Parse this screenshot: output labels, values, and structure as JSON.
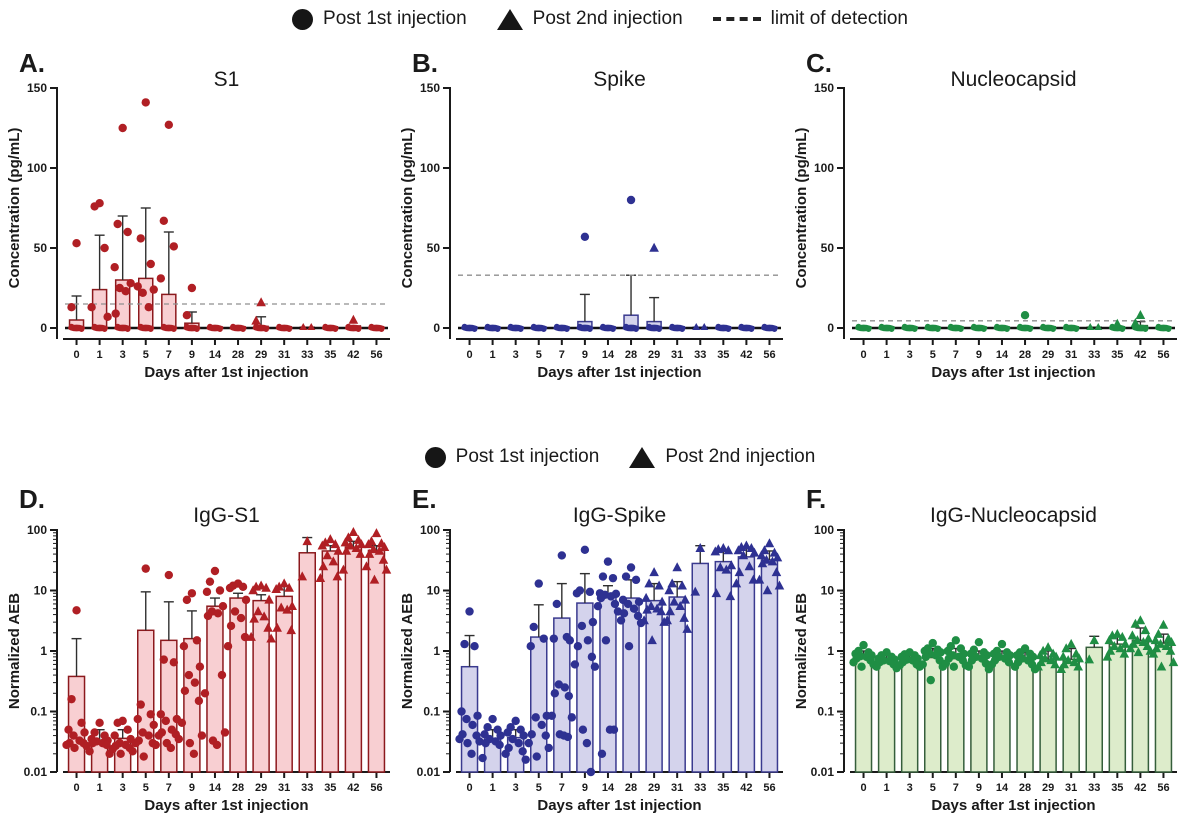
{
  "legend_top": {
    "items": [
      {
        "marker": "circle",
        "label": "Post 1st injection"
      },
      {
        "marker": "triangle",
        "label": "Post 2nd injection"
      },
      {
        "marker": "dash",
        "label": "limit of detection"
      }
    ]
  },
  "legend_mid": {
    "items": [
      {
        "marker": "circle",
        "label": "Post 1st injection"
      },
      {
        "marker": "triangle",
        "label": "Post 2nd injection"
      }
    ]
  },
  "chart_data": [
    {
      "id": "A",
      "label": "A.",
      "title": "S1",
      "type": "bar",
      "yscale": "linear",
      "ylabel": "Concentration (pg/mL)",
      "xlabel": "Days after 1st injection",
      "ylim": [
        0,
        150
      ],
      "yticks": [
        0,
        50,
        100,
        150
      ],
      "lod": 15,
      "triangle_from_day": 29,
      "colors": {
        "point": "#b01f24",
        "bar_fill": "#f8cfd2",
        "bar_stroke": "#8c191d"
      },
      "categories": [
        0,
        1,
        3,
        5,
        7,
        9,
        14,
        28,
        29,
        31,
        33,
        35,
        42,
        56
      ],
      "bars": [
        5,
        24,
        30,
        31,
        21,
        3,
        0.8,
        0.8,
        1,
        0.8,
        0.5,
        0.8,
        1.3,
        0.8
      ],
      "whiskers": [
        20,
        58,
        70,
        75,
        60,
        10,
        0,
        0,
        7,
        0,
        0,
        0,
        0,
        0
      ],
      "points": {
        "0": [
          53,
          13
        ],
        "1": [
          78,
          76,
          50,
          13,
          7
        ],
        "3": [
          125,
          65,
          60,
          38,
          28,
          25,
          23,
          9
        ],
        "5": [
          141,
          56,
          40,
          26,
          24,
          22,
          13
        ],
        "7": [
          127,
          67,
          51,
          31
        ],
        "9": [
          25,
          8
        ],
        "29": [
          16,
          4.5
        ],
        "42": [
          5
        ]
      },
      "zero_blob": [
        10,
        10,
        10,
        10,
        10,
        10,
        10,
        10,
        9,
        9,
        3,
        9,
        9,
        9
      ]
    },
    {
      "id": "B",
      "label": "B.",
      "title": "Spike",
      "type": "bar",
      "yscale": "linear",
      "ylabel": "Concentration (pg/mL)",
      "xlabel": "Days after 1st injection",
      "ylim": [
        0,
        150
      ],
      "yticks": [
        0,
        50,
        100,
        150
      ],
      "lod": 33,
      "triangle_from_day": 29,
      "colors": {
        "point": "#2e3192",
        "bar_fill": "#d4d3ec",
        "bar_stroke": "#3a3a8f"
      },
      "categories": [
        0,
        1,
        3,
        5,
        7,
        9,
        14,
        28,
        29,
        31,
        33,
        35,
        42,
        56
      ],
      "bars": [
        0.8,
        0.8,
        0.8,
        0.8,
        0.8,
        4,
        0.8,
        8,
        4,
        0.8,
        0.5,
        0.8,
        0.8,
        0.8
      ],
      "whiskers": [
        0,
        0,
        0,
        0,
        0,
        21,
        0,
        33,
        19,
        0,
        0,
        0,
        0,
        0
      ],
      "points": {
        "9": [
          57
        ],
        "28": [
          80
        ],
        "29": [
          50
        ]
      },
      "zero_blob": [
        10,
        10,
        10,
        10,
        10,
        10,
        10,
        10,
        9,
        9,
        3,
        9,
        9,
        9
      ]
    },
    {
      "id": "C",
      "label": "C.",
      "title": "Nucleocapsid",
      "type": "bar",
      "yscale": "linear",
      "ylabel": "Concentration (pg/mL)",
      "xlabel": "Days after 1st injection",
      "ylim": [
        0,
        150
      ],
      "yticks": [
        0,
        50,
        100,
        150
      ],
      "lod": 4.5,
      "triangle_from_day": 29,
      "colors": {
        "point": "#1f8e44",
        "bar_fill": "#ddeccb",
        "bar_stroke": "#2c6b35"
      },
      "categories": [
        0,
        1,
        3,
        5,
        7,
        9,
        14,
        28,
        29,
        31,
        33,
        35,
        42,
        56
      ],
      "bars": [
        0.8,
        0.8,
        0.8,
        0.8,
        0.8,
        0.8,
        0.8,
        0.8,
        0.8,
        0.8,
        0.5,
        0.8,
        1.5,
        0.8
      ],
      "whiskers": [
        0,
        0,
        0,
        0,
        0,
        0,
        0,
        0,
        0,
        0,
        0,
        0,
        4,
        0
      ],
      "points": {
        "28": [
          8
        ],
        "35": [
          2.5
        ],
        "42": [
          8,
          3
        ]
      },
      "zero_blob": [
        10,
        10,
        10,
        10,
        10,
        10,
        10,
        10,
        9,
        9,
        3,
        9,
        9,
        9
      ]
    },
    {
      "id": "D",
      "label": "D.",
      "title": "IgG-S1",
      "type": "bar",
      "yscale": "log",
      "ylabel": "Normalized  AEB",
      "xlabel": "Days after 1st injection",
      "ylim": [
        0.01,
        100
      ],
      "yticks": [
        0.01,
        0.1,
        1,
        10,
        100
      ],
      "triangle_from_day": 29,
      "colors": {
        "point": "#b01f24",
        "bar_fill": "#f8cfd2",
        "bar_stroke": "#8c191d"
      },
      "categories": [
        0,
        1,
        3,
        5,
        7,
        9,
        14,
        28,
        29,
        31,
        33,
        35,
        42,
        56
      ],
      "bars": [
        0.38,
        0.033,
        0.036,
        2.2,
        1.5,
        1.6,
        5.5,
        7.5,
        6.8,
        8,
        42,
        45,
        52,
        46
      ],
      "whiskers": [
        1.6,
        0.05,
        0.05,
        9.5,
        6.5,
        4.6,
        7.5,
        9,
        8.5,
        12,
        75,
        55,
        65,
        55
      ],
      "points": {
        "0": [
          4.7,
          0.16,
          0.065,
          0.05,
          0.045,
          0.04,
          0.033,
          0.03,
          0.03,
          0.028,
          0.027,
          0.025
        ],
        "1": [
          0.065,
          0.045,
          0.04,
          0.035,
          0.033,
          0.032,
          0.03,
          0.03,
          0.028,
          0.022,
          0.02
        ],
        "3": [
          0.07,
          0.065,
          0.05,
          0.04,
          0.035,
          0.03,
          0.028,
          0.027,
          0.025,
          0.024,
          0.022,
          0.02
        ],
        "5": [
          23,
          0.13,
          0.09,
          0.075,
          0.06,
          0.045,
          0.04,
          0.033,
          0.03,
          0.03,
          0.028,
          0.018
        ],
        "7": [
          18,
          0.72,
          0.65,
          0.09,
          0.075,
          0.07,
          0.05,
          0.045,
          0.042,
          0.04,
          0.035,
          0.03,
          0.025
        ],
        "9": [
          9,
          7,
          1.5,
          1.2,
          0.55,
          0.4,
          0.3,
          0.22,
          0.15,
          0.065,
          0.04,
          0.03,
          0.02
        ],
        "14": [
          21,
          14,
          10,
          9.5,
          5.5,
          4.5,
          4.2,
          3.8,
          0.4,
          0.2,
          0.045,
          0.033,
          0.028
        ],
        "28": [
          13,
          12,
          11.5,
          11,
          7,
          4.5,
          3.5,
          2.6,
          1.7,
          1.2
        ],
        "29": [
          12,
          11.5,
          11,
          10,
          7,
          4.5,
          3.7,
          3.4,
          2.4,
          1.7,
          1.6
        ],
        "31": [
          13,
          11.5,
          11,
          10.5,
          5.5,
          5.2,
          4.8,
          2.4,
          2.2
        ],
        "33": [
          65,
          17
        ],
        "35": [
          70,
          62,
          58,
          55,
          45,
          38,
          30,
          25,
          17,
          16
        ],
        "42": [
          92,
          75,
          68,
          62,
          58,
          55,
          50,
          45,
          40,
          22
        ],
        "56": [
          88,
          65,
          60,
          58,
          52,
          48,
          45,
          40,
          32,
          25,
          22,
          15
        ]
      }
    },
    {
      "id": "E",
      "label": "E.",
      "title": "IgG-Spike",
      "type": "bar",
      "yscale": "log",
      "ylabel": "Normalized  AEB",
      "xlabel": "Days after 1st injection",
      "ylim": [
        0.01,
        100
      ],
      "yticks": [
        0.01,
        0.1,
        1,
        10,
        100
      ],
      "triangle_from_day": 29,
      "colors": {
        "point": "#2e3192",
        "bar_fill": "#d4d3ec",
        "bar_stroke": "#3a3a8f"
      },
      "categories": [
        0,
        1,
        3,
        5,
        7,
        9,
        14,
        28,
        29,
        31,
        33,
        35,
        42,
        56
      ],
      "bars": [
        0.55,
        0.035,
        0.037,
        1.7,
        3.5,
        6.2,
        7.8,
        7.5,
        6.8,
        7.8,
        28,
        30,
        36,
        32
      ],
      "whiskers": [
        1.8,
        0.05,
        0.05,
        5.8,
        13,
        19,
        12,
        15,
        13,
        14,
        55,
        45,
        50,
        45
      ],
      "points": {
        "0": [
          4.5,
          1.3,
          1.2,
          0.1,
          0.085,
          0.075,
          0.06,
          0.042,
          0.04,
          0.035,
          0.032,
          0.03,
          0.02
        ],
        "1": [
          0.075,
          0.055,
          0.05,
          0.042,
          0.04,
          0.035,
          0.032,
          0.03,
          0.028,
          0.017
        ],
        "3": [
          0.07,
          0.055,
          0.05,
          0.045,
          0.04,
          0.035,
          0.03,
          0.025,
          0.022,
          0.02,
          0.016
        ],
        "5": [
          13,
          2.5,
          1.6,
          1.2,
          0.085,
          0.08,
          0.06,
          0.042,
          0.04,
          0.03,
          0.025,
          0.018
        ],
        "7": [
          38,
          6,
          1.7,
          1.6,
          1.5,
          0.28,
          0.25,
          0.2,
          0.18,
          0.085,
          0.08,
          0.042,
          0.04,
          0.038
        ],
        "9": [
          47,
          10,
          9.5,
          9,
          3,
          2.6,
          1.5,
          1.2,
          0.8,
          0.6,
          0.55,
          0.05,
          0.03,
          0.01
        ],
        "14": [
          30,
          17,
          16,
          9,
          8.8,
          8.5,
          8,
          7.5,
          6,
          5.5,
          4.5,
          1.5,
          0.05,
          0.05,
          0.02
        ],
        "28": [
          24,
          17,
          15,
          7,
          6.5,
          6,
          5,
          4.2,
          3.8,
          3.2,
          2.9,
          1.2
        ],
        "29": [
          20,
          13,
          12,
          7.5,
          6.5,
          5.5,
          5,
          4.8,
          4.5,
          3.2,
          3,
          1.5
        ],
        "31": [
          24,
          13,
          12,
          10,
          7,
          6.5,
          5.5,
          4.5,
          3.5,
          3.2,
          2.3
        ],
        "33": [
          50,
          9.5
        ],
        "35": [
          50,
          48,
          46,
          44,
          26,
          24,
          22,
          9,
          8
        ],
        "42": [
          55,
          52,
          50,
          46,
          42,
          38,
          25,
          20,
          15,
          13
        ],
        "56": [
          60,
          46,
          42,
          38,
          35,
          32,
          30,
          28,
          20,
          15,
          12,
          10
        ]
      }
    },
    {
      "id": "F",
      "label": "F.",
      "title": "IgG-Nucleocapsid",
      "type": "bar",
      "yscale": "log",
      "ylabel": "Normalized  AEB",
      "xlabel": "Days after 1st injection",
      "ylim": [
        0.01,
        100
      ],
      "yticks": [
        0.01,
        0.1,
        1,
        10,
        100
      ],
      "triangle_from_day": 29,
      "colors": {
        "point": "#1f8e44",
        "bar_fill": "#ddeccb",
        "bar_stroke": "#355e3b"
      },
      "categories": [
        0,
        1,
        3,
        5,
        7,
        9,
        14,
        28,
        29,
        31,
        33,
        35,
        42,
        56
      ],
      "bars": [
        0.82,
        0.68,
        0.72,
        0.78,
        0.75,
        0.72,
        0.75,
        0.72,
        0.73,
        0.73,
        1.15,
        1.3,
        1.5,
        1.35
      ],
      "whiskers": [
        1.0,
        0.85,
        0.9,
        1.1,
        1.1,
        1.0,
        1.0,
        0.95,
        1.0,
        1.1,
        1.75,
        1.8,
        2.4,
        1.9
      ],
      "points": {
        "0": [
          1.25,
          1.0,
          0.95,
          0.9,
          0.85,
          0.82,
          0.8,
          0.75,
          0.7,
          0.65,
          0.6,
          0.55
        ],
        "1": [
          0.95,
          0.85,
          0.8,
          0.75,
          0.72,
          0.7,
          0.68,
          0.65,
          0.6,
          0.55,
          0.52
        ],
        "3": [
          0.95,
          0.88,
          0.85,
          0.8,
          0.75,
          0.72,
          0.7,
          0.65,
          0.6,
          0.58,
          0.55
        ],
        "5": [
          1.35,
          1.1,
          1.05,
          1.0,
          0.95,
          0.9,
          0.85,
          0.8,
          0.7,
          0.6,
          0.55,
          0.33
        ],
        "7": [
          1.5,
          1.2,
          1.1,
          1.0,
          0.9,
          0.85,
          0.8,
          0.75,
          0.7,
          0.62,
          0.58,
          0.55
        ],
        "9": [
          1.4,
          1.05,
          0.95,
          0.9,
          0.85,
          0.8,
          0.75,
          0.7,
          0.62,
          0.55,
          0.5
        ],
        "14": [
          1.3,
          1.0,
          0.95,
          0.9,
          0.85,
          0.8,
          0.75,
          0.7,
          0.65,
          0.6
        ],
        "28": [
          1.1,
          0.95,
          0.9,
          0.85,
          0.8,
          0.75,
          0.7,
          0.65,
          0.6,
          0.55,
          0.5
        ],
        "29": [
          1.15,
          1.0,
          0.9,
          0.85,
          0.8,
          0.75,
          0.7,
          0.65,
          0.6,
          0.55
        ],
        "31": [
          1.3,
          1.1,
          0.9,
          0.8,
          0.75,
          0.7,
          0.65,
          0.6,
          0.55,
          0.5
        ],
        "33": [
          1.5,
          0.72
        ],
        "35": [
          1.9,
          1.8,
          1.7,
          1.5,
          1.3,
          1.2,
          1.1,
          1.0,
          0.9,
          0.8
        ],
        "42": [
          3.2,
          2.8,
          2.2,
          1.8,
          1.6,
          1.5,
          1.4,
          1.3,
          1.2,
          1.1,
          1.0,
          0.95
        ],
        "56": [
          2.7,
          1.9,
          1.6,
          1.5,
          1.4,
          1.3,
          1.2,
          1.1,
          1.0,
          0.9,
          0.65,
          0.55
        ]
      }
    }
  ]
}
